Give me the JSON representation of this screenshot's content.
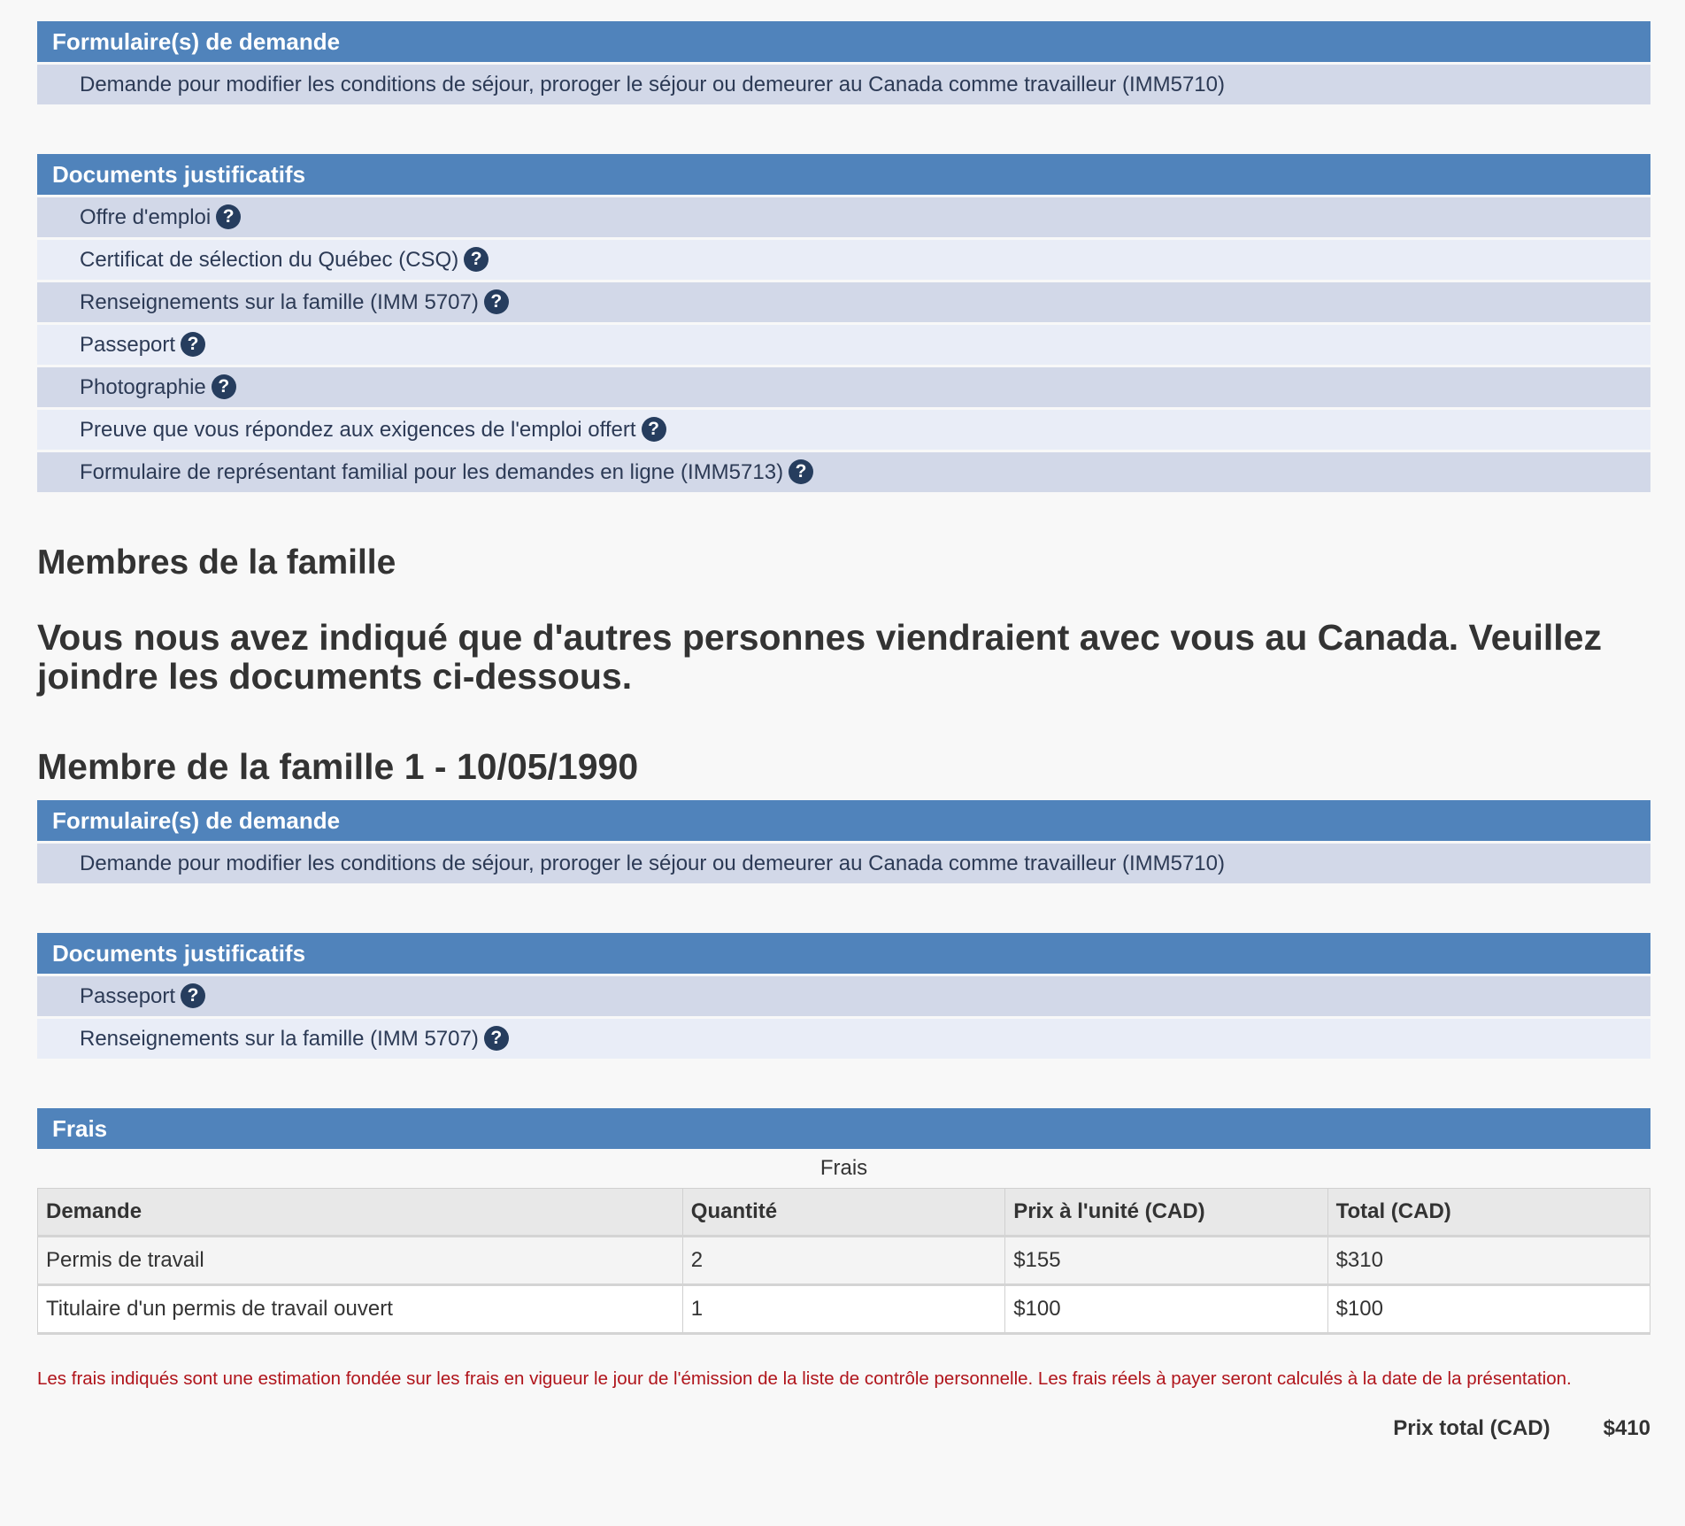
{
  "applicant": {
    "forms_header": "Formulaire(s) de demande",
    "forms": [
      "Demande pour modifier les conditions de séjour, proroger le séjour ou demeurer au Canada comme travailleur (IMM5710)"
    ],
    "docs_header": "Documents justificatifs",
    "docs": [
      "Offre d'emploi",
      "Certificat de sélection du Québec (CSQ)",
      "Renseignements sur la famille (IMM 5707)",
      "Passeport",
      "Photographie",
      "Preuve que vous répondez aux exigences de l'emploi offert",
      "Formulaire de représentant familial pour les demandes en ligne (IMM5713)"
    ]
  },
  "family": {
    "title": "Membres de la famille",
    "intro": "Vous nous avez indiqué que d'autres personnes viendraient avec vous au Canada. Veuillez joindre les documents ci-dessous.",
    "member1": {
      "title": "Membre de la famille 1 - 10/05/1990",
      "forms_header": "Formulaire(s) de demande",
      "forms": [
        "Demande pour modifier les conditions de séjour, proroger le séjour ou demeurer au Canada comme travailleur (IMM5710)"
      ],
      "docs_header": "Documents justificatifs",
      "docs": [
        "Passeport",
        "Renseignements sur la famille (IMM 5707)"
      ]
    }
  },
  "help_icon": "?",
  "fees": {
    "header": "Frais",
    "caption": "Frais",
    "columns": [
      "Demande",
      "Quantité",
      "Prix à l'unité (CAD)",
      "Total (CAD)"
    ],
    "rows": [
      [
        "Permis de travail",
        "2",
        "$155",
        "$310"
      ],
      [
        "Titulaire d'un permis de travail ouvert",
        "1",
        "$100",
        "$100"
      ]
    ],
    "note": "Les frais indiqués sont une estimation fondée sur les frais en vigueur le jour de l'émission de la liste de contrôle personnelle. Les frais réels à payer seront calculés à la date de la présentation.",
    "total_label": "Prix total (CAD)",
    "total_value": "$410"
  },
  "colors": {
    "header": "#5083bb",
    "row_odd": "#d2d8e8",
    "row_even": "#e9edf7",
    "note": "#b0141b",
    "help_icon": "#263d5e"
  }
}
